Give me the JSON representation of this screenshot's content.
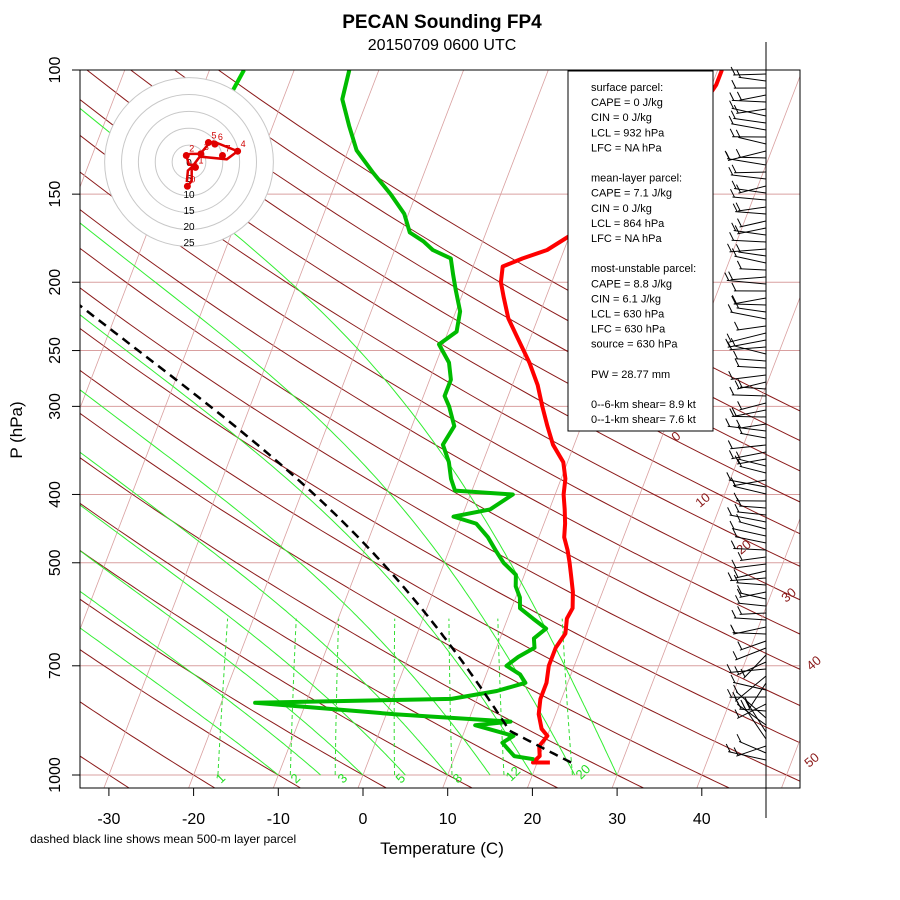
{
  "chart_data": {
    "type": "line",
    "title": "PECAN Sounding FP4",
    "subtitle": "20150709 0600 UTC",
    "xlabel": "Temperature (C)",
    "ylabel": "P (hPa)",
    "caption": "dashed black line shows mean 500-m layer parcel",
    "x_ticks": [
      -30,
      -20,
      -10,
      0,
      10,
      20,
      30,
      40
    ],
    "y_ticks": [
      100,
      150,
      200,
      250,
      300,
      400,
      500,
      700,
      1000
    ],
    "xlim": [
      -33,
      40
    ],
    "ylim": [
      1000,
      100
    ],
    "y_scale": "log",
    "mixing_ratio_labels": [
      "1",
      "2",
      "3",
      "5",
      "8",
      "12",
      "20"
    ],
    "theta_labels": [
      "0",
      "10",
      "20",
      "30",
      "40",
      "50"
    ],
    "series": [
      {
        "color": "#ff0000",
        "points": [
          [
            21.5,
            960
          ],
          [
            19.5,
            960
          ],
          [
            20.0,
            940
          ],
          [
            19.5,
            910
          ],
          [
            20.0,
            880
          ],
          [
            19.0,
            860
          ],
          [
            18.0,
            820
          ],
          [
            17.5,
            780
          ],
          [
            17.5,
            740
          ],
          [
            17.0,
            700
          ],
          [
            17.0,
            660
          ],
          [
            17.5,
            630
          ],
          [
            17.0,
            600
          ],
          [
            17.2,
            580
          ],
          [
            16.5,
            550
          ],
          [
            15.5,
            520
          ],
          [
            14.8,
            500
          ],
          [
            14.0,
            480
          ],
          [
            13.0,
            460
          ],
          [
            12.5,
            440
          ],
          [
            11.8,
            420
          ],
          [
            11.0,
            400
          ],
          [
            10.5,
            380
          ],
          [
            9.5,
            360
          ],
          [
            7.5,
            340
          ],
          [
            6.0,
            320
          ],
          [
            4.5,
            300
          ],
          [
            3.0,
            280
          ],
          [
            1.0,
            260
          ],
          [
            -1.5,
            240
          ],
          [
            -3.5,
            225
          ],
          [
            -5.0,
            210
          ],
          [
            -6.0,
            200
          ],
          [
            -6.5,
            190
          ],
          [
            -4.5,
            185
          ],
          [
            -2.0,
            180
          ],
          [
            0.0,
            172
          ],
          [
            1.0,
            160
          ],
          [
            3.0,
            155
          ],
          [
            3.5,
            145
          ],
          [
            4.0,
            140
          ],
          [
            6.5,
            133
          ],
          [
            7.0,
            125
          ],
          [
            8.5,
            120
          ],
          [
            9.0,
            115
          ],
          [
            10.0,
            110
          ],
          [
            10.5,
            105
          ],
          [
            10.5,
            100
          ]
        ]
      },
      {
        "color": "#00bb00",
        "points": [
          [
            19.5,
            950
          ],
          [
            17.0,
            940
          ],
          [
            16.0,
            920
          ],
          [
            15.0,
            900
          ],
          [
            16.0,
            880
          ],
          [
            11.0,
            850
          ],
          [
            15.0,
            840
          ],
          [
            1.0,
            820
          ],
          [
            -16.0,
            790
          ],
          [
            7.0,
            780
          ],
          [
            12.0,
            760
          ],
          [
            15.0,
            740
          ],
          [
            14.0,
            720
          ],
          [
            12.0,
            700
          ],
          [
            13.0,
            680
          ],
          [
            14.5,
            660
          ],
          [
            14.0,
            640
          ],
          [
            15.0,
            620
          ],
          [
            13.0,
            600
          ],
          [
            11.0,
            580
          ],
          [
            10.5,
            560
          ],
          [
            9.5,
            540
          ],
          [
            9.0,
            520
          ],
          [
            7.0,
            500
          ],
          [
            5.5,
            480
          ],
          [
            4.0,
            460
          ],
          [
            2.0,
            440
          ],
          [
            -1.0,
            430
          ],
          [
            3.0,
            420
          ],
          [
            5.0,
            400
          ],
          [
            -2.0,
            395
          ],
          [
            -3.0,
            380
          ],
          [
            -4.0,
            360
          ],
          [
            -5.5,
            340
          ],
          [
            -5.0,
            320
          ],
          [
            -6.5,
            300
          ],
          [
            -7.5,
            290
          ],
          [
            -7.5,
            275
          ],
          [
            -8.5,
            260
          ],
          [
            -10.5,
            245
          ],
          [
            -9.0,
            235
          ],
          [
            -9.5,
            220
          ],
          [
            -11.0,
            205
          ],
          [
            -12.0,
            195
          ],
          [
            -13.0,
            185
          ],
          [
            -15.5,
            180
          ],
          [
            -17.0,
            175
          ],
          [
            -19.0,
            170
          ],
          [
            -20.5,
            160
          ],
          [
            -23.0,
            150
          ],
          [
            -26.0,
            140
          ],
          [
            -29.0,
            130
          ],
          [
            -31.0,
            120
          ],
          [
            -33.0,
            110
          ],
          [
            -33.5,
            100
          ]
        ]
      }
    ]
  },
  "info_box": {
    "lines": [
      "surface parcel:",
      "CAPE = 0 J/kg",
      "CIN = 0 J/kg",
      "LCL = 932 hPa",
      "LFC = NA hPa",
      "",
      "mean-layer parcel:",
      "CAPE = 7.1 J/kg",
      "CIN = 0 J/kg",
      "LCL = 864 hPa",
      "LFC = NA hPa",
      "",
      "most-unstable parcel:",
      "CAPE = 8.8 J/kg",
      "CIN = 6.1 J/kg",
      "LCL = 630 hPa",
      "LFC = 630 hPa",
      "source = 630 hPa",
      "",
      "PW =  28.77 mm",
      "",
      "0--6-km shear= 8.9 kt",
      "0--1-km shear= 7.6 kt"
    ]
  },
  "hodograph": {
    "ring_labels": [
      "0",
      "5",
      "10",
      "15",
      "20",
      "25"
    ],
    "point_labels": [
      "0",
      "1",
      "2",
      "3",
      "4",
      "5",
      "6",
      "7"
    ],
    "path": [
      [
        -0.3,
        -4.5
      ],
      [
        0.5,
        -3.5
      ],
      [
        0.5,
        -1.0
      ],
      [
        2.0,
        1.0
      ],
      [
        7.0,
        0.5
      ],
      [
        9.0,
        2.0
      ],
      [
        4.5,
        3.8
      ],
      [
        3.5,
        3.2
      ],
      [
        2.5,
        2.0
      ],
      [
        2.2,
        1.5
      ],
      [
        0.2,
        1.5
      ],
      [
        -0.5,
        1.2
      ],
      [
        0.0,
        -0.5
      ],
      [
        1.0,
        -0.5
      ],
      [
        -0.2,
        -1.6
      ],
      [
        -0.4,
        -3.7
      ]
    ],
    "labeled_points": [
      [
        -0.3,
        -4.5
      ],
      [
        1.2,
        -1.0
      ],
      [
        -0.5,
        1.2
      ],
      [
        2.2,
        1.5
      ],
      [
        9.0,
        2.0
      ],
      [
        3.6,
        3.6
      ],
      [
        4.8,
        3.3
      ],
      [
        6.2,
        1.2
      ]
    ]
  }
}
